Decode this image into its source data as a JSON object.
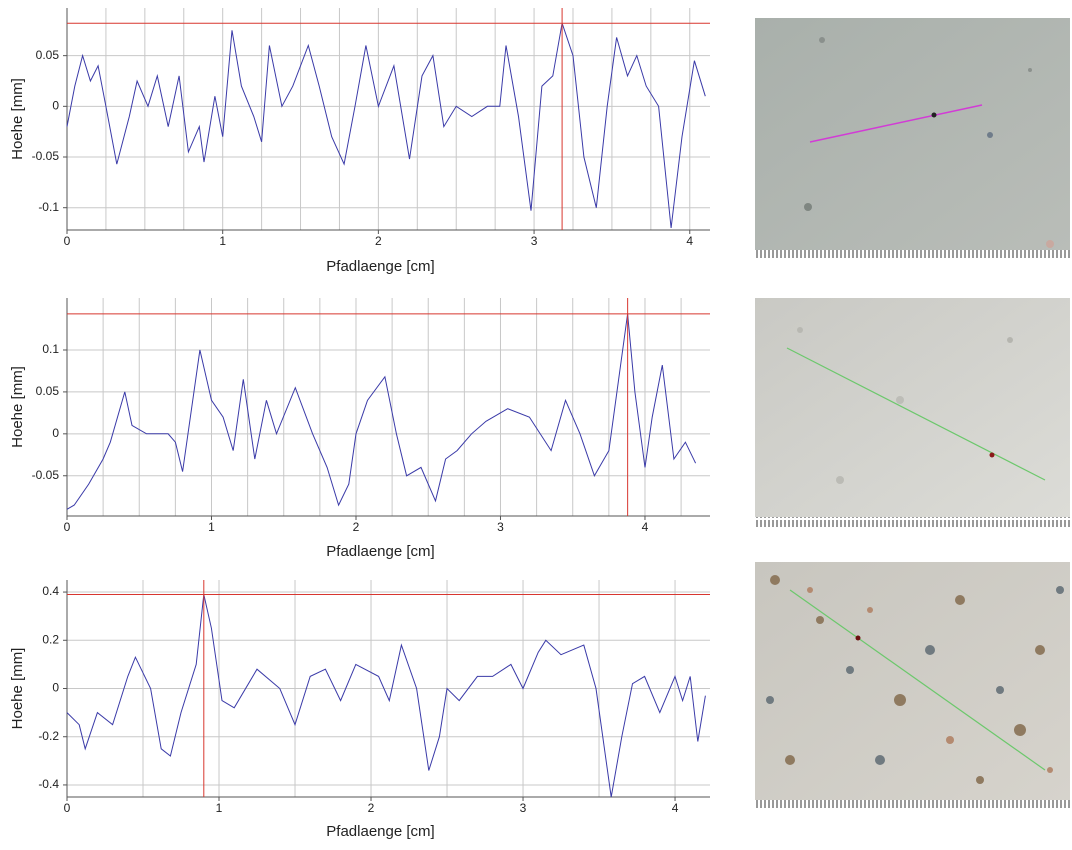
{
  "chart_data": [
    {
      "type": "line",
      "xlabel": "Pfadlaenge [cm]",
      "ylabel": "Hoehe [mm]",
      "color": "#3a3aa8",
      "x": [
        0,
        0.05,
        0.1,
        0.15,
        0.2,
        0.25,
        0.32,
        0.4,
        0.45,
        0.52,
        0.58,
        0.65,
        0.72,
        0.78,
        0.85,
        0.88,
        0.95,
        1.0,
        1.06,
        1.12,
        1.2,
        1.25,
        1.3,
        1.38,
        1.45,
        1.55,
        1.62,
        1.7,
        1.78,
        1.85,
        1.92,
        2.0,
        2.1,
        2.2,
        2.28,
        2.35,
        2.42,
        2.5,
        2.6,
        2.7,
        2.78,
        2.82,
        2.9,
        2.98,
        3.05,
        3.12,
        3.18,
        3.25,
        3.32,
        3.4,
        3.47,
        3.53,
        3.6,
        3.66,
        3.72,
        3.8,
        3.88,
        3.95,
        4.03,
        4.1
      ],
      "values": [
        -0.02,
        0.02,
        0.05,
        0.025,
        0.04,
        0.0,
        -0.057,
        -0.01,
        0.025,
        0.0,
        0.03,
        -0.02,
        0.03,
        -0.045,
        -0.02,
        -0.055,
        0.01,
        -0.03,
        0.075,
        0.02,
        -0.01,
        -0.035,
        0.06,
        0.0,
        0.02,
        0.06,
        0.02,
        -0.03,
        -0.057,
        0.0,
        0.06,
        0.0,
        0.04,
        -0.052,
        0.03,
        0.05,
        -0.02,
        0.0,
        -0.01,
        0.0,
        0.0,
        0.06,
        -0.01,
        -0.103,
        0.02,
        0.03,
        0.082,
        0.05,
        -0.05,
        -0.1,
        0.0,
        0.068,
        0.03,
        0.05,
        0.02,
        0.0,
        -0.12,
        -0.03,
        0.045,
        0.01
      ],
      "xlim": [
        0,
        4.13
      ],
      "ylim": [
        -0.122,
        0.097
      ],
      "xticks": [
        0,
        1,
        2,
        3,
        4
      ],
      "yticks": [
        -0.1,
        -0.05,
        0,
        0.05
      ],
      "x_grid_step": 0.25,
      "grid": true,
      "cursor": {
        "x": 3.18,
        "y": 0.082,
        "color": "#d8362f"
      }
    },
    {
      "type": "line",
      "xlabel": "Pfadlaenge [cm]",
      "ylabel": "Hoehe [mm]",
      "color": "#3a3aa8",
      "x": [
        0,
        0.05,
        0.15,
        0.25,
        0.3,
        0.4,
        0.45,
        0.55,
        0.7,
        0.75,
        0.8,
        0.92,
        1.0,
        1.08,
        1.15,
        1.22,
        1.3,
        1.38,
        1.45,
        1.58,
        1.7,
        1.8,
        1.88,
        1.95,
        2.0,
        2.08,
        2.2,
        2.28,
        2.35,
        2.45,
        2.55,
        2.62,
        2.7,
        2.8,
        2.9,
        3.05,
        3.2,
        3.35,
        3.45,
        3.55,
        3.65,
        3.75,
        3.88,
        3.93,
        4.0,
        4.05,
        4.12,
        4.2,
        4.28,
        4.35
      ],
      "values": [
        -0.09,
        -0.085,
        -0.06,
        -0.03,
        -0.01,
        0.05,
        0.01,
        0.0,
        0.0,
        -0.01,
        -0.045,
        0.1,
        0.04,
        0.02,
        -0.02,
        0.065,
        -0.03,
        0.04,
        0.0,
        0.055,
        0.0,
        -0.04,
        -0.085,
        -0.06,
        0.0,
        0.04,
        0.068,
        0.0,
        -0.05,
        -0.04,
        -0.08,
        -0.03,
        -0.02,
        0.0,
        0.015,
        0.03,
        0.02,
        -0.02,
        0.04,
        0.0,
        -0.05,
        -0.02,
        0.143,
        0.05,
        -0.04,
        0.02,
        0.082,
        -0.03,
        -0.01,
        -0.035
      ],
      "xlim": [
        0,
        4.45
      ],
      "ylim": [
        -0.098,
        0.162
      ],
      "xticks": [
        0,
        1,
        2,
        3,
        4
      ],
      "yticks": [
        -0.05,
        0,
        0.05,
        0.1
      ],
      "x_grid_step": 0.25,
      "grid": true,
      "cursor": {
        "x": 3.88,
        "y": 0.143,
        "color": "#d8362f"
      }
    },
    {
      "type": "line",
      "xlabel": "Pfadlaenge [cm]",
      "ylabel": "Hoehe [mm]",
      "color": "#3a3aa8",
      "x": [
        0,
        0.08,
        0.12,
        0.2,
        0.3,
        0.4,
        0.45,
        0.55,
        0.62,
        0.68,
        0.75,
        0.85,
        0.9,
        0.95,
        1.02,
        1.1,
        1.25,
        1.4,
        1.5,
        1.6,
        1.7,
        1.8,
        1.9,
        2.05,
        2.12,
        2.2,
        2.3,
        2.38,
        2.45,
        2.5,
        2.58,
        2.7,
        2.8,
        2.92,
        3.0,
        3.1,
        3.15,
        3.25,
        3.4,
        3.48,
        3.58,
        3.65,
        3.72,
        3.8,
        3.9,
        4.0,
        4.05,
        4.1,
        4.15,
        4.2
      ],
      "values": [
        -0.1,
        -0.15,
        -0.25,
        -0.1,
        -0.15,
        0.05,
        0.13,
        0.0,
        -0.25,
        -0.28,
        -0.1,
        0.1,
        0.39,
        0.25,
        -0.05,
        -0.08,
        0.08,
        0.0,
        -0.15,
        0.05,
        0.08,
        -0.05,
        0.1,
        0.05,
        -0.05,
        0.18,
        0.0,
        -0.34,
        -0.2,
        0.0,
        -0.05,
        0.05,
        0.05,
        0.1,
        0.0,
        0.15,
        0.2,
        0.14,
        0.18,
        0.0,
        -0.45,
        -0.2,
        0.02,
        0.05,
        -0.1,
        0.05,
        -0.05,
        0.05,
        -0.22,
        -0.03
      ],
      "xlim": [
        0,
        4.23
      ],
      "ylim": [
        -0.45,
        0.45
      ],
      "xticks": [
        0,
        1,
        2,
        3,
        4
      ],
      "yticks": [
        -0.4,
        -0.2,
        0,
        0.2,
        0.4
      ],
      "x_grid_step": 0.5,
      "grid": true,
      "cursor": {
        "x": 0.9,
        "y": 0.39,
        "color": "#d8362f"
      }
    }
  ]
}
